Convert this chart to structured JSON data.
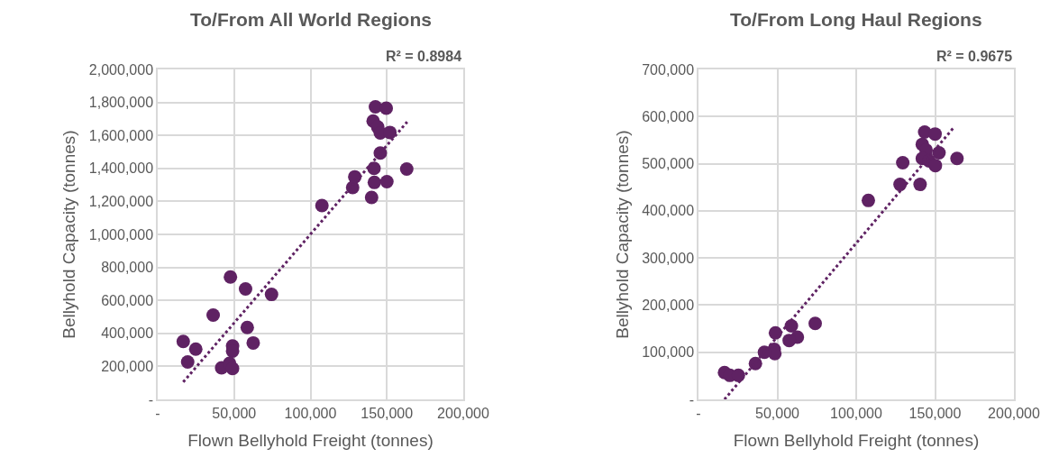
{
  "chart_data": [
    {
      "type": "scatter",
      "title": "To/From All World Regions",
      "annotations": [
        "R² = 0.8984"
      ],
      "xlabel": "Flown Bellyhold Freight (tonnes)",
      "ylabel": "Bellyhold Capacity (tonnes)",
      "marker": "circle",
      "grid": true,
      "xlim": [
        0,
        200000
      ],
      "xticks": [
        {
          "value": 0,
          "label": "-"
        },
        {
          "value": 50000,
          "label": "50,000"
        },
        {
          "value": 100000,
          "label": "100,000"
        },
        {
          "value": 150000,
          "label": "150,000"
        },
        {
          "value": 200000,
          "label": "200,000"
        }
      ],
      "ylim": [
        0,
        2000000
      ],
      "yticks": [
        {
          "value": 0,
          "label": "-"
        },
        {
          "value": 200000,
          "label": "200,000"
        },
        {
          "value": 400000,
          "label": "400,000"
        },
        {
          "value": 600000,
          "label": "600,000"
        },
        {
          "value": 800000,
          "label": "800,000"
        },
        {
          "value": 1000000,
          "label": "1,000,000"
        },
        {
          "value": 1200000,
          "label": "1,200,000"
        },
        {
          "value": 1400000,
          "label": "1,400,000"
        },
        {
          "value": 1600000,
          "label": "1,600,000"
        },
        {
          "value": 1800000,
          "label": "1,800,000"
        },
        {
          "value": 2000000,
          "label": "2,000,000"
        }
      ],
      "series": [
        {
          "color": "#5f2263",
          "x": [
            142500,
            149600,
            141000,
            144000,
            145700,
            152000,
            145700,
            141600,
            163000,
            129000,
            127600,
            141800,
            150000,
            140000,
            107500,
            47600,
            57500,
            74500,
            36300,
            58600,
            16700,
            24900,
            49000,
            49000,
            62500,
            19600,
            41800,
            47000,
            49000
          ],
          "values": [
            1773000,
            1765000,
            1687000,
            1651000,
            1615000,
            1618000,
            1493000,
            1400000,
            1396000,
            1349000,
            1284000,
            1315000,
            1320000,
            1224000,
            1175000,
            742000,
            669000,
            636000,
            511000,
            436000,
            351000,
            305000,
            324000,
            293000,
            342000,
            227000,
            191000,
            218000,
            187000
          ]
        },
        {
          "type": "line",
          "color": "#5f2263",
          "line_style": "dotted",
          "marker": "none",
          "x": [
            16700,
            163300
          ],
          "values": [
            105000,
            1682000
          ]
        }
      ]
    },
    {
      "type": "scatter",
      "title": "To/From Long Haul Regions",
      "annotations": [
        "R² = 0.9675"
      ],
      "xlabel": "Flown Bellyhold Freight (tonnes)",
      "ylabel": "Bellyhold Capacity (tonnes)",
      "marker": "circle",
      "grid": true,
      "xlim": [
        0,
        200000
      ],
      "xticks": [
        {
          "value": 0,
          "label": "-"
        },
        {
          "value": 50000,
          "label": "50,000"
        },
        {
          "value": 100000,
          "label": "100,000"
        },
        {
          "value": 150000,
          "label": "150,000"
        },
        {
          "value": 200000,
          "label": "200,000"
        }
      ],
      "ylim": [
        0,
        700000
      ],
      "yticks": [
        {
          "value": 0,
          "label": "-"
        },
        {
          "value": 100000,
          "label": "100,000"
        },
        {
          "value": 200000,
          "label": "200,000"
        },
        {
          "value": 300000,
          "label": "300,000"
        },
        {
          "value": 400000,
          "label": "400,000"
        },
        {
          "value": 500000,
          "label": "500,000"
        },
        {
          "value": 600000,
          "label": "600,000"
        },
        {
          "value": 700000,
          "label": "700,000"
        }
      ],
      "series": [
        {
          "color": "#5f2263",
          "x": [
            143400,
            150000,
            141900,
            144300,
            152500,
            141900,
            146200,
            150200,
            163900,
            129500,
            127800,
            140500,
            107700,
            74000,
            58900,
            62700,
            57500,
            48800,
            48000,
            48400,
            41800,
            36100,
            16500,
            19900,
            25300
          ],
          "values": [
            567000,
            563000,
            541000,
            529000,
            523000,
            511000,
            506000,
            496000,
            511000,
            502000,
            456000,
            456000,
            422000,
            161000,
            156000,
            132000,
            125000,
            141000,
            106000,
            97000,
            100000,
            76000,
            57000,
            51000,
            51000
          ]
        },
        {
          "type": "line",
          "color": "#5f2263",
          "line_style": "dotted",
          "marker": "none",
          "x": [
            16500,
            162400
          ],
          "values": [
            0,
            579000
          ]
        }
      ]
    }
  ]
}
